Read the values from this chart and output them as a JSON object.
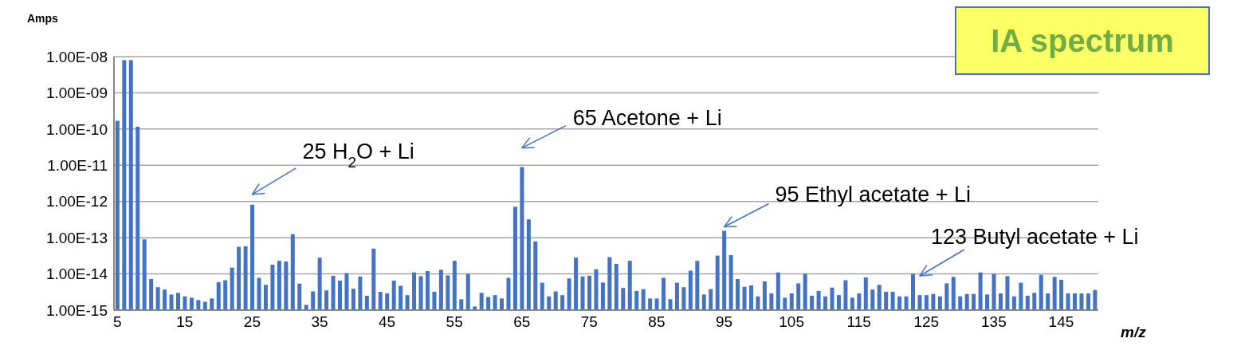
{
  "chart_data": {
    "type": "bar",
    "title": "IA spectrum",
    "ylabel": "Amps",
    "xlabel": "m/z",
    "categories": [
      "5",
      null,
      null,
      null,
      null,
      null,
      null,
      null,
      null,
      null,
      "15",
      null,
      null,
      null,
      null,
      null,
      null,
      null,
      null,
      null,
      "25",
      null,
      null,
      null,
      null,
      null,
      null,
      null,
      null,
      null,
      "35",
      null,
      null,
      null,
      null,
      null,
      null,
      null,
      null,
      null,
      "45",
      null,
      null,
      null,
      null,
      null,
      null,
      null,
      null,
      null,
      "55",
      null,
      null,
      null,
      null,
      null,
      null,
      null,
      null,
      null,
      "65",
      null,
      null,
      null,
      null,
      null,
      null,
      null,
      null,
      null,
      "75",
      null,
      null,
      null,
      null,
      null,
      null,
      null,
      null,
      null,
      "85",
      null,
      null,
      null,
      null,
      null,
      null,
      null,
      null,
      null,
      "95",
      null,
      null,
      null,
      null,
      null,
      null,
      null,
      null,
      null,
      "105",
      null,
      null,
      null,
      null,
      null,
      null,
      null,
      null,
      null,
      "115",
      null,
      null,
      null,
      null,
      null,
      null,
      null,
      null,
      null,
      "125",
      null,
      null,
      null,
      null,
      null,
      null,
      null,
      null,
      null,
      "135",
      null,
      null,
      null,
      null,
      null,
      null,
      null,
      null,
      null,
      "145",
      null,
      null,
      null,
      null,
      null
    ],
    "values": [
      1.7e-10,
      8e-09,
      8e-09,
      1.15e-10,
      9e-14,
      7.2e-15,
      4.3e-15,
      3.7e-15,
      2.7e-15,
      3e-15,
      2.4e-15,
      2.2e-15,
      1.9e-15,
      1.7e-15,
      2.1e-15,
      5.9e-15,
      6.7e-15,
      1.5e-14,
      5.6e-14,
      5.8e-14,
      8.1e-13,
      7.8e-15,
      5e-15,
      1.8e-14,
      2.3e-14,
      2.2e-14,
      1.25e-13,
      5.4e-15,
      1.4e-15,
      3.3e-15,
      2.8e-14,
      3.5e-15,
      8.9e-15,
      6.5e-15,
      1.05e-14,
      3.9e-15,
      8.5e-15,
      2.5e-15,
      5e-14,
      3.2e-15,
      2.9e-15,
      6.5e-15,
      4.7e-15,
      2.6e-15,
      1.1e-14,
      8.7e-15,
      1.2e-14,
      3.2e-15,
      1.3e-14,
      9.1e-15,
      2.3e-14,
      2e-15,
      1e-14,
      1.26e-15,
      3e-15,
      2.3e-15,
      2.6e-15,
      2.1e-15,
      7.8e-15,
      7.2e-13,
      8.9e-12,
      3.2e-13,
      7.9e-14,
      5.7e-15,
      2.4e-15,
      3.3e-15,
      2.6e-15,
      7.5e-15,
      2.8e-14,
      8.5e-15,
      8.9e-15,
      1.35e-14,
      5.8e-15,
      2.9e-14,
      1.9e-14,
      4.1e-15,
      2.3e-14,
      3.4e-15,
      3.8e-15,
      2.1e-15,
      2.1e-15,
      7.8e-15,
      2e-15,
      5.7e-15,
      4.3e-15,
      1.23e-14,
      2.3e-14,
      2.7e-15,
      3.8e-15,
      3.2e-14,
      1.55e-13,
      3.3e-14,
      7.2e-15,
      4.4e-15,
      4.8e-15,
      2.4e-15,
      6.2e-15,
      2.9e-15,
      1.1e-14,
      2.2e-15,
      2.9e-15,
      5.5e-15,
      1e-14,
      2.5e-15,
      3.4e-15,
      2.4e-15,
      4.2e-15,
      2.6e-15,
      6.7e-15,
      2.2e-15,
      2.9e-15,
      8e-15,
      3.7e-15,
      5e-15,
      3.2e-15,
      3.2e-15,
      2.4e-15,
      2.4e-15,
      1e-14,
      2.6e-15,
      2.6e-15,
      2.8e-15,
      2.4e-15,
      5.5e-15,
      8.3e-15,
      2.4e-15,
      2.8e-15,
      2.8e-15,
      1.1e-14,
      2.7e-15,
      1e-14,
      2.9e-15,
      8.7e-15,
      2.4e-15,
      5.7e-15,
      2.5e-15,
      3e-15,
      9.4e-15,
      2.9e-15,
      8.3e-15,
      6.9e-15,
      2.9e-15,
      2.9e-15,
      2.9e-15,
      2.9e-15,
      3.6e-15
    ],
    "color": "#4472c4",
    "log": true,
    "grid": "y",
    "ylim": [
      1e-15,
      1e-08
    ],
    "yticks": [
      {
        "value": 1e-15,
        "label": "1.00E-15"
      },
      {
        "value": 1e-14,
        "label": "1.00E-14"
      },
      {
        "value": 1e-13,
        "label": "1.00E-13"
      },
      {
        "value": 1e-12,
        "label": "1.00E-12"
      },
      {
        "value": 1e-11,
        "label": "1.00E-11"
      },
      {
        "value": 1e-10,
        "label": "1.00E-10"
      },
      {
        "value": 1e-09,
        "label": "1.00E-09"
      },
      {
        "value": 1e-08,
        "label": "1.00E-08"
      }
    ],
    "annotations": [
      {
        "text": "25 H$_{2}$O + Li",
        "x": "25",
        "y": 8.1e-13
      },
      {
        "text": "65   Acetone + Li",
        "x": "65",
        "y": 8.9e-12
      },
      {
        "text": "95  Ethyl acetate + Li",
        "x": "95",
        "y": 1.55e-13
      },
      "123  Butyl acetate + Li"
    ]
  }
}
